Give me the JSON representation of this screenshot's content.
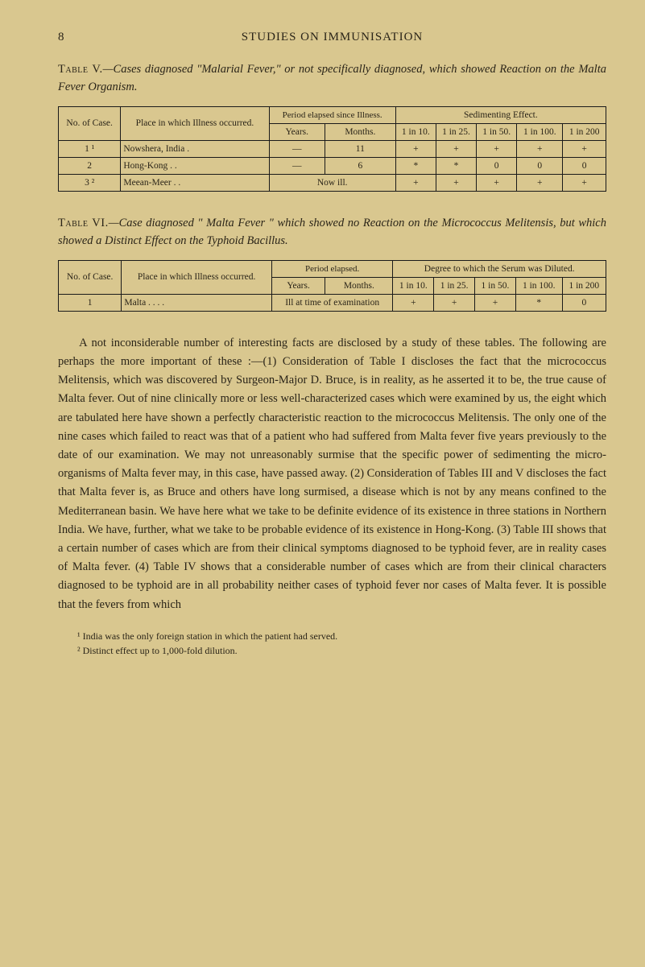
{
  "page_number": "8",
  "running_header": "STUDIES ON IMMUNISATION",
  "table5": {
    "caption_label": "Table V.",
    "caption_text": "—Cases diagnosed \"Malarial Fever,\" or not specifically diagnosed, which showed Reaction on the Malta Fever Organism.",
    "head_no": "No. of Case.",
    "head_place": "Place in which Illness occurred.",
    "head_period": "Period elapsed since Illness.",
    "head_years": "Years.",
    "head_months": "Months.",
    "head_sedi": "Sedimenting Effect.",
    "head_d1": "1 in 10.",
    "head_d2": "1 in 25.",
    "head_d3": "1 in 50.",
    "head_d4": "1 in 100.",
    "head_d5": "1 in 200",
    "rows": [
      {
        "no": "1 ¹",
        "place": "Nowshera, India .",
        "years": "—",
        "months": "11",
        "d1": "+",
        "d2": "+",
        "d3": "+",
        "d4": "+",
        "d5": "+"
      },
      {
        "no": "2",
        "place": "Hong-Kong   .   .",
        "years": "—",
        "months": "6",
        "d1": "*",
        "d2": "*",
        "d3": "0",
        "d4": "0",
        "d5": "0"
      },
      {
        "no": "3 ²",
        "place": "Meean-Meer   .   .",
        "years": "",
        "months": "",
        "d1": "+",
        "d2": "+",
        "d3": "+",
        "d4": "+",
        "d5": "+",
        "nowill": "Now ill."
      }
    ]
  },
  "table6": {
    "caption_label": "Table VI.",
    "caption_text": "—Case diagnosed \" Malta Fever \" which showed no Reaction on the Micrococcus Melitensis, but which showed a Distinct Effect on the Typhoid Bacillus.",
    "head_no": "No. of Case.",
    "head_place": "Place in which Illness occurred.",
    "head_period": "Period elapsed.",
    "head_years": "Years.",
    "head_months": "Months.",
    "head_degree": "Degree to which the Serum was Diluted.",
    "head_d1": "1 in 10.",
    "head_d2": "1 in 25.",
    "head_d3": "1 in 50.",
    "head_d4": "1 in 100.",
    "head_d5": "1 in 200",
    "row": {
      "no": "1",
      "place": "Malta .   .   .   .",
      "period": "Ill at time of examination",
      "d1": "+",
      "d2": "+",
      "d3": "+",
      "d4": "*",
      "d5": "0"
    }
  },
  "body": "A not inconsiderable number of interesting facts are disclosed by a study of these tables. The following are perhaps the more important of these :—(1) Consideration of Table I discloses the fact that the micrococcus Melitensis, which was discovered by Surgeon-Major D. Bruce, is in reality, as he asserted it to be, the true cause of Malta fever. Out of nine clinically more or less well-characterized cases which were examined by us, the eight which are tabulated here have shown a perfectly characteristic reaction to the micrococcus Melitensis. The only one of the nine cases which failed to react was that of a patient who had suffered from Malta fever five years previously to the date of our examination. We may not unreasonably surmise that the specific power of sedimenting the micro-organisms of Malta fever may, in this case, have passed away. (2) Consideration of Tables III and V discloses the fact that Malta fever is, as Bruce and others have long surmised, a disease which is not by any means confined to the Mediterranean basin. We have here what we take to be definite evidence of its existence in three stations in Northern India. We have, further, what we take to be probable evidence of its existence in Hong-Kong. (3) Table III shows that a certain number of cases which are from their clinical symptoms diagnosed to be typhoid fever, are in reality cases of Malta fever. (4) Table IV shows that a considerable number of cases which are from their clinical characters diagnosed to be typhoid are in all probability neither cases of typhoid fever nor cases of Malta fever. It is possible that the fevers from which",
  "footnote1": "¹ India was the only foreign station in which the patient had served.",
  "footnote2": "² Distinct effect up to 1,000-fold dilution."
}
